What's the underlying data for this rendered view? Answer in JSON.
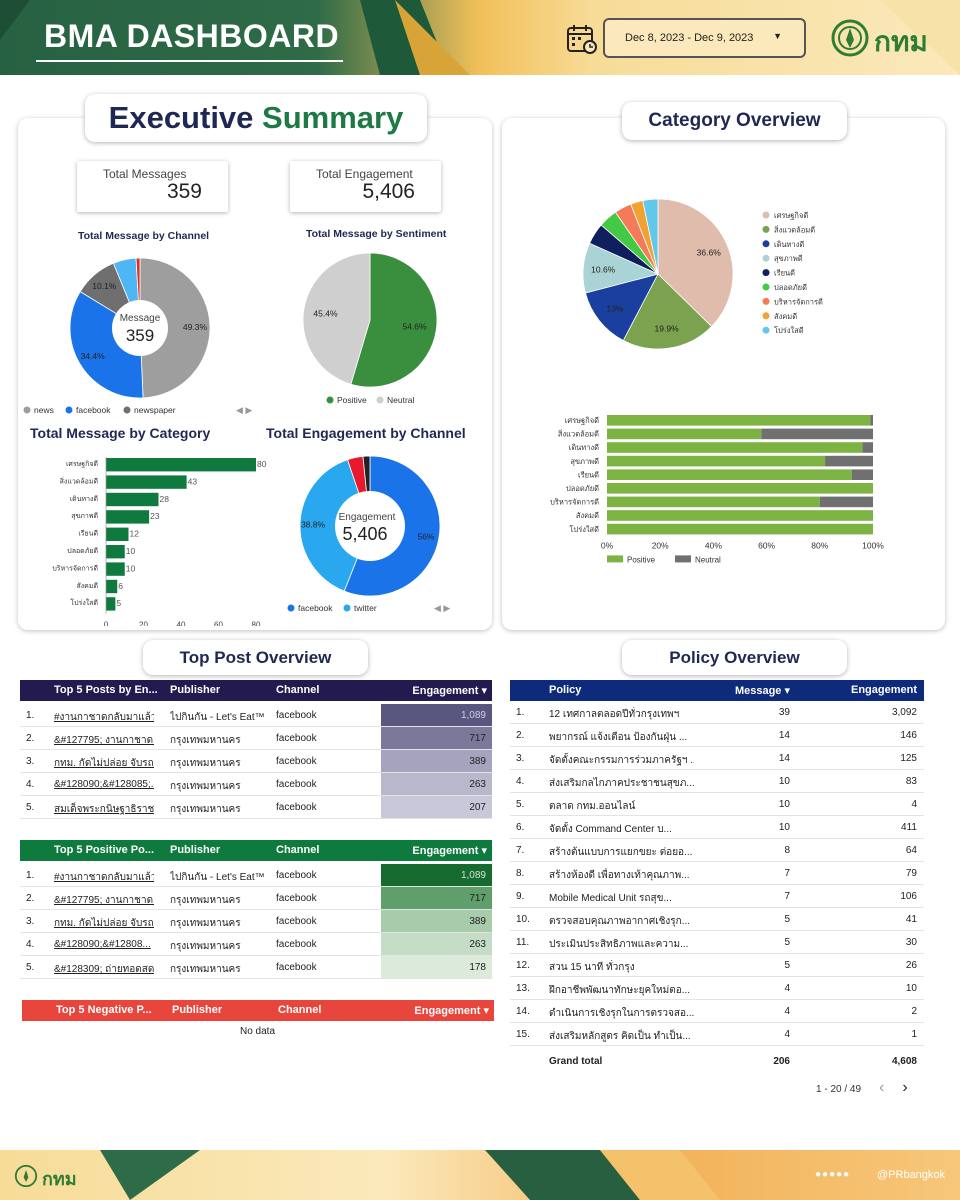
{
  "header": {
    "title": "BMA DASHBOARD",
    "date_range": "Dec 8, 2023 - Dec 9, 2023",
    "logo_text": "กทม"
  },
  "exec": {
    "title_a": "Executive",
    "title_b": "Summary",
    "kpi": [
      {
        "label": "Total Messages",
        "value": "359"
      },
      {
        "label": "Total Engagement",
        "value": "5,406"
      }
    ],
    "channel_title": "Total Message by Channel",
    "sentiment_title": "Total Message by Sentiment",
    "category_title": "Total Message by Category",
    "eng_channel_title": "Total Engagement by Channel",
    "channel_center_label": "Message",
    "channel_center_value": "359",
    "eng_center_label": "Engagement",
    "eng_center_value": "5,406"
  },
  "category_overview": {
    "title": "Category Overview"
  },
  "top_post": {
    "title": "Top Post Overview"
  },
  "policy": {
    "title": "Policy Overview"
  },
  "colors": {
    "green": "#3a8f3e",
    "blue": "#1a73e8",
    "grey": "#9e9e9e",
    "navy": "#231a4f",
    "dark_green": "#0f7a3e",
    "red": "#e8453c",
    "policy_navy": "#0e2a7a"
  },
  "chart_data": [
    {
      "id": "channel",
      "type": "pie",
      "donut": true,
      "title": "Total Message by Channel",
      "labels": [
        "news",
        "facebook",
        "newspaper",
        "other-1",
        "other-2"
      ],
      "values": [
        49.3,
        34.4,
        10.1,
        5.3,
        0.9
      ],
      "colors": [
        "#9e9e9e",
        "#1a73e8",
        "#6f6f6f",
        "#4fb6f5",
        "#d93025"
      ],
      "printed": [
        "49.3%",
        "34.4%",
        "10.1%"
      ],
      "legend": [
        "news",
        "facebook",
        "newspaper"
      ]
    },
    {
      "id": "sentiment",
      "type": "pie",
      "title": "Total Message by Sentiment",
      "labels": [
        "Positive",
        "Neutral"
      ],
      "values": [
        54.6,
        45.4
      ],
      "colors": [
        "#3a8f3e",
        "#cfcfcf"
      ],
      "printed": [
        "54.6%",
        "45.4%"
      ],
      "legend": [
        "Positive",
        "Neutral"
      ]
    },
    {
      "id": "category",
      "type": "bar",
      "orientation": "horizontal",
      "title": "Total Message by Category",
      "categories": [
        "เศรษฐกิจดี",
        "สิ่งแวดล้อมดี",
        "เดินทางดี",
        "สุขภาพดี",
        "เรียนดี",
        "ปลอดภัยดี",
        "บริหารจัดการดี",
        "สังคมดี",
        "โปร่งใสดี"
      ],
      "values": [
        80,
        43,
        28,
        23,
        12,
        10,
        10,
        6,
        5
      ],
      "xticks": [
        "0",
        "20",
        "40",
        "60",
        "80"
      ],
      "xlim": [
        0,
        80
      ]
    },
    {
      "id": "eng_channel",
      "type": "pie",
      "donut": true,
      "title": "Total Engagement by Channel",
      "labels": [
        "facebook",
        "twitter",
        "other-1",
        "other-2"
      ],
      "values": [
        56,
        38.8,
        3.6,
        1.6
      ],
      "colors": [
        "#1a73e8",
        "#29a8f0",
        "#e8192c",
        "#222222"
      ],
      "printed": [
        "56%",
        "38.8%"
      ],
      "legend": [
        "facebook",
        "twitter"
      ]
    },
    {
      "id": "cat_pie",
      "type": "pie",
      "title": "Category Overview",
      "labels": [
        "เศรษฐกิจดี",
        "สิ่งแวดล้อมดี",
        "เดินทางดี",
        "สุขภาพดี",
        "เรียนดี",
        "ปลอดภัยดี",
        "บริหารจัดการดี",
        "สังคมดี",
        "โปร่งใสดี"
      ],
      "values": [
        36.6,
        19.9,
        13,
        10.6,
        4.5,
        4.0,
        3.6,
        2.6,
        3.2
      ],
      "colors": [
        "#dfbcac",
        "#7ba24e",
        "#1a3f9e",
        "#a9d3d5",
        "#0f1e5c",
        "#43c943",
        "#f47a5a",
        "#f2a233",
        "#62c8ea"
      ],
      "printed": [
        "36.6%",
        "19.9%",
        "13%",
        "10.6%"
      ]
    },
    {
      "id": "cat_stack",
      "type": "bar",
      "stacked": "percent",
      "orientation": "horizontal",
      "categories": [
        "เศรษฐกิจดี",
        "สิ่งแวดล้อมดี",
        "เดินทางดี",
        "สุขภาพดี",
        "เรียนดี",
        "ปลอดภัยดี",
        "บริหารจัดการดี",
        "สังคมดี",
        "โปร่งใสดี"
      ],
      "series": [
        {
          "name": "Positive",
          "values": [
            99,
            58,
            96,
            82,
            92,
            100,
            80,
            100,
            100
          ]
        },
        {
          "name": "Neutral",
          "values": [
            1,
            42,
            4,
            18,
            8,
            0,
            20,
            0,
            0
          ]
        }
      ],
      "xticks": [
        "0%",
        "20%",
        "40%",
        "60%",
        "80%",
        "100%"
      ],
      "colors": [
        "#7cb342",
        "#707070"
      ]
    }
  ],
  "tables": {
    "top5": {
      "headers": [
        "Top 5 Posts by En...",
        "Publisher",
        "Channel",
        "Engagement ▾"
      ],
      "rows": [
        {
          "n": "1.",
          "post": "#งานกาชาดกลับมาแล้ว #ค...",
          "pub": "ไปกินกัน - Let's Eat™",
          "ch": "facebook",
          "eng": "1,089",
          "v": 1089
        },
        {
          "n": "2.",
          "post": "&#127795; งานกาชาด เริ่...",
          "pub": "กรุงเทพมหานคร",
          "ch": "facebook",
          "eng": "717",
          "v": 717
        },
        {
          "n": "3.",
          "post": "กทม. กัดไม่ปล่อย จับรถบรร...",
          "pub": "กรุงเทพมหานคร",
          "ch": "facebook",
          "eng": "389",
          "v": 389
        },
        {
          "n": "4.",
          "post": "&#128090;&#128085;...",
          "pub": "กรุงเทพมหานคร",
          "ch": "facebook",
          "eng": "263",
          "v": 263
        },
        {
          "n": "5.",
          "post": "สมเด็จพระกนิษฐาธิราชเจ้า ก...",
          "pub": "กรุงเทพมหานคร",
          "ch": "facebook",
          "eng": "207",
          "v": 207
        }
      ]
    },
    "positive": {
      "headers": [
        "Top 5 Positive Po...",
        "Publisher",
        "Channel",
        "Engagement ▾"
      ],
      "rows": [
        {
          "n": "1.",
          "post": "#งานกาชาดกลับมาแล้ว #ค...",
          "pub": "ไปกินกัน - Let's Eat™",
          "ch": "facebook",
          "eng": "1,089",
          "v": 1089
        },
        {
          "n": "2.",
          "post": "&#127795; งานกาชาด เ...",
          "pub": "กรุงเทพมหานคร",
          "ch": "facebook",
          "eng": "717",
          "v": 717
        },
        {
          "n": "3.",
          "post": "กทม. กัดไม่ปล่อย จับรถบรร...",
          "pub": "กรุงเทพมหานคร",
          "ch": "facebook",
          "eng": "389",
          "v": 389
        },
        {
          "n": "4.",
          "post": "&#128090;&#12808...",
          "pub": "กรุงเทพมหานคร",
          "ch": "facebook",
          "eng": "263",
          "v": 263
        },
        {
          "n": "5.",
          "post": "&#128309; ถ่ายทอดสด ...",
          "pub": "กรุงเทพมหานคร",
          "ch": "facebook",
          "eng": "178",
          "v": 178
        }
      ]
    },
    "negative": {
      "headers": [
        "Top 5 Negative P...",
        "Publisher",
        "Channel",
        "Engagement ▾"
      ],
      "empty": "No data"
    },
    "policy": {
      "headers": [
        "Policy",
        "Message ▾",
        "Engagement"
      ],
      "rows": [
        {
          "n": "1.",
          "p": "12 เทศกาลตลอดปีทั่วกรุงเทพฯ",
          "m": "39",
          "e": "3,092"
        },
        {
          "n": "2.",
          "p": "พยากรณ์ แจ้งเตือน ป้องกันฝุ่น ...",
          "m": "14",
          "e": "146"
        },
        {
          "n": "3.",
          "p": "จัดตั้งคณะกรรมการร่วมภาครัฐฯ ...",
          "m": "14",
          "e": "125"
        },
        {
          "n": "4.",
          "p": "ส่งเสริมกลไกภาคประชาชนสุขภ...",
          "m": "10",
          "e": "83"
        },
        {
          "n": "5.",
          "p": "ตลาด กทม.ออนไลน์",
          "m": "10",
          "e": "4"
        },
        {
          "n": "6.",
          "p": "จัดตั้ง Command Center บ...",
          "m": "10",
          "e": "411"
        },
        {
          "n": "7.",
          "p": "สร้างต้นแบบการแยกขยะ ต่อยอ...",
          "m": "8",
          "e": "64"
        },
        {
          "n": "8.",
          "p": "สร้างห้องดี เพื่อทางเท้าคุณภาพ...",
          "m": "7",
          "e": "79"
        },
        {
          "n": "9.",
          "p": "Mobile Medical Unit รถสุข...",
          "m": "7",
          "e": "106"
        },
        {
          "n": "10.",
          "p": "ตรวจสอบคุณภาพอากาศเชิงรุก...",
          "m": "5",
          "e": "41"
        },
        {
          "n": "11.",
          "p": "ประเมินประสิทธิภาพและความ...",
          "m": "5",
          "e": "30"
        },
        {
          "n": "12.",
          "p": "สวน 15 นาที ทั่วกรุง",
          "m": "5",
          "e": "26"
        },
        {
          "n": "13.",
          "p": "ฝึกอาชีพพัฒนาทักษะยุคใหม่ตอ...",
          "m": "4",
          "e": "10"
        },
        {
          "n": "14.",
          "p": "ดำเนินการเชิงรุกในการตรวจสอ...",
          "m": "4",
          "e": "2"
        },
        {
          "n": "15.",
          "p": "ส่งเสริมหลักสูตร คิดเป็น ทำเป็น...",
          "m": "4",
          "e": "1"
        }
      ],
      "total_label": "Grand total",
      "total_m": "206",
      "total_e": "4,608",
      "pager": "1 - 20 / 49"
    }
  },
  "footer": {
    "logo_text": "กทม",
    "handle": "@PRbangkok"
  }
}
